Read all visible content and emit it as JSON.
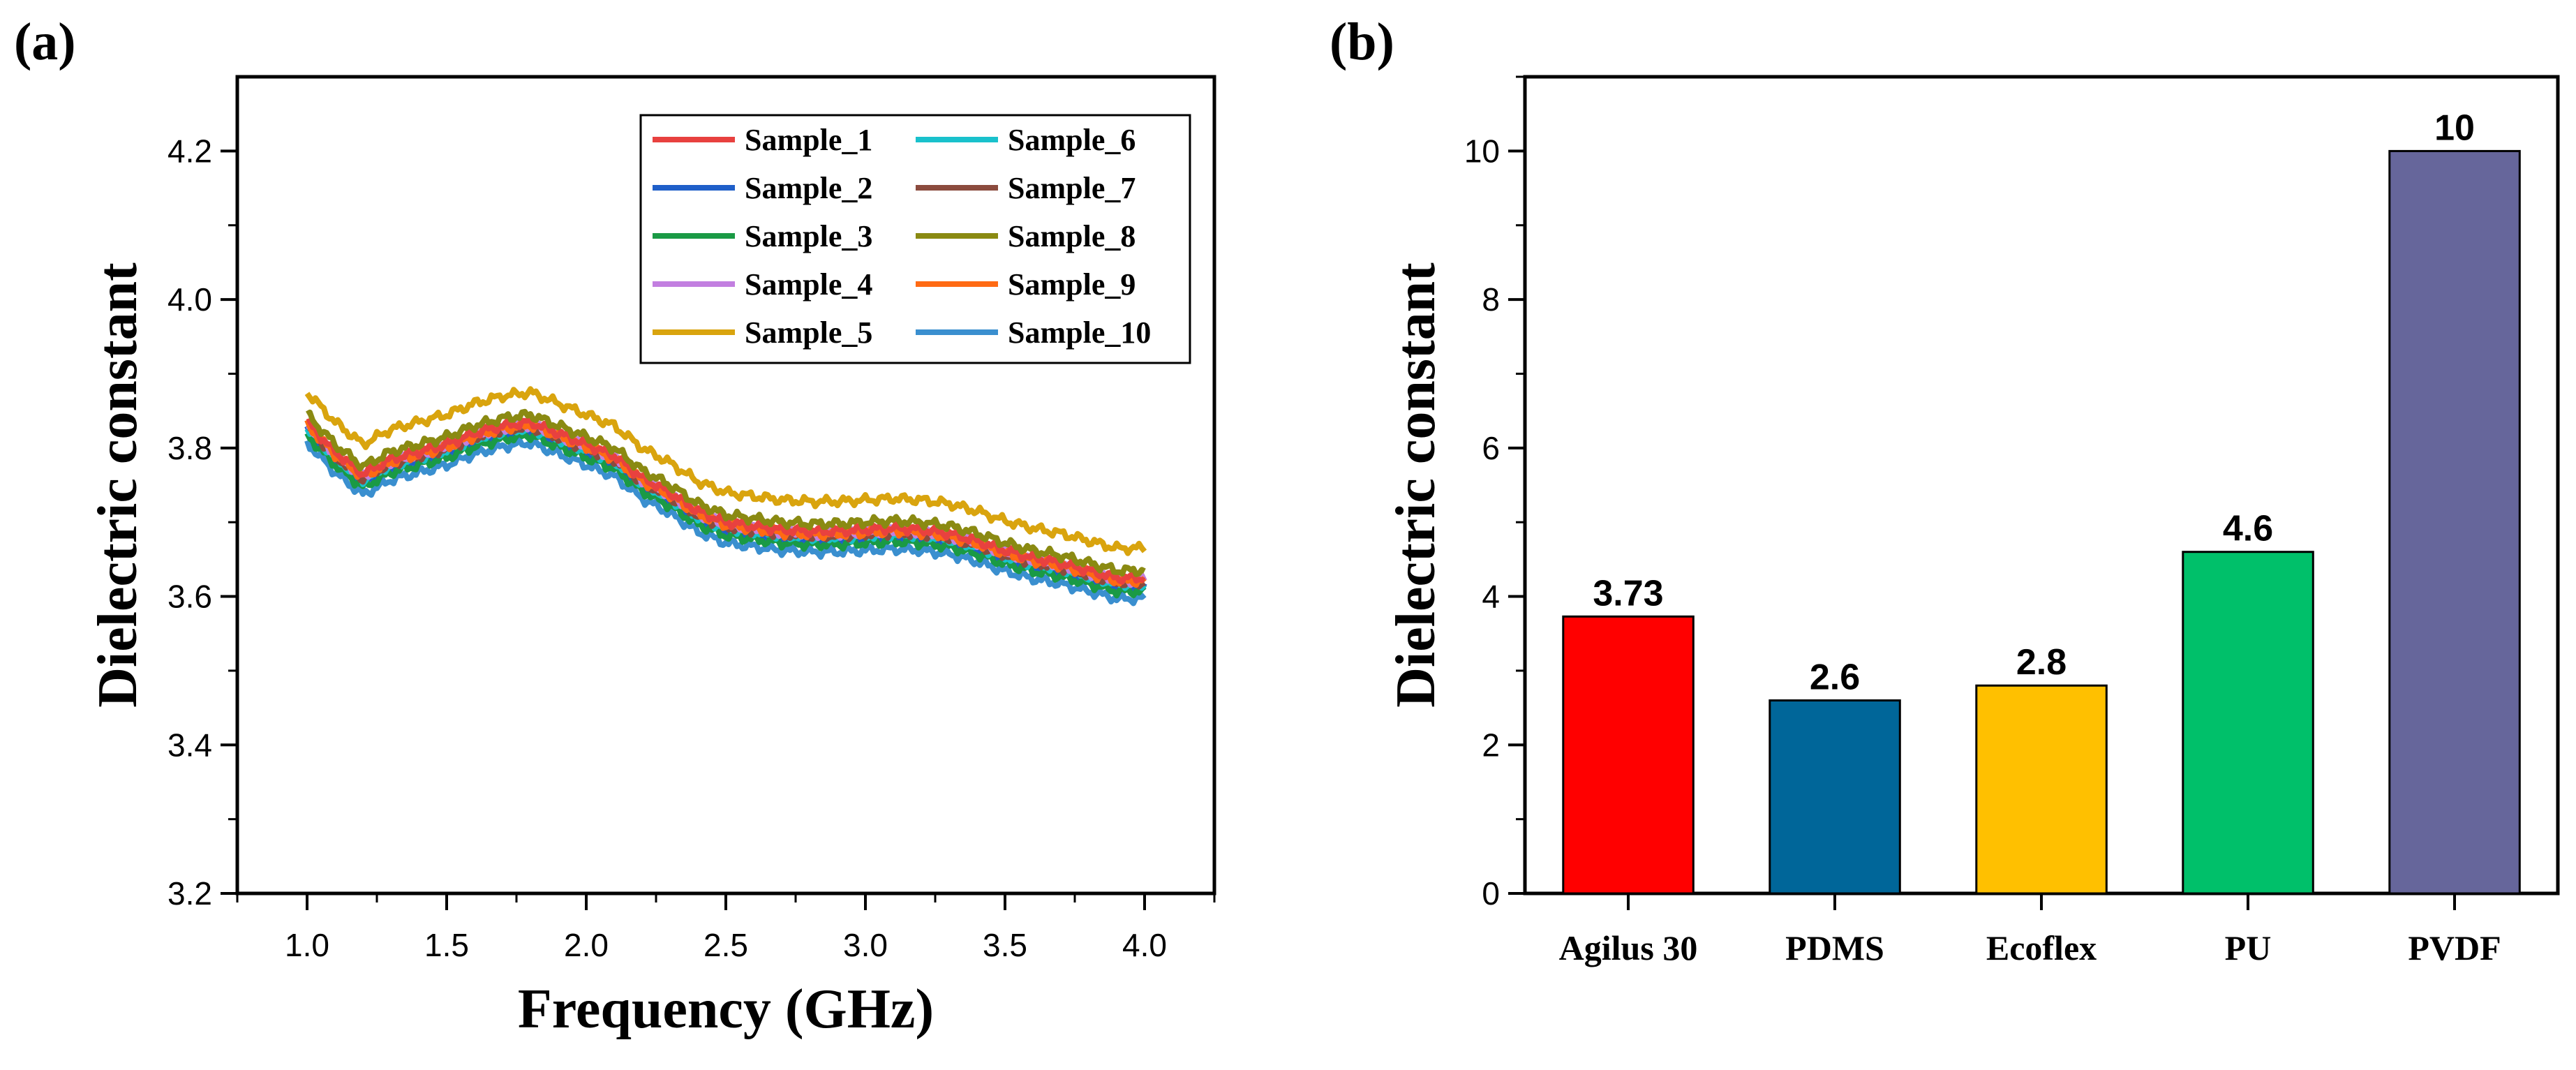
{
  "panel_labels": {
    "a": "(a)",
    "b": "(b)"
  },
  "chart_data": [
    {
      "type": "line",
      "panel": "(a)",
      "xlabel": "Frequency (GHz)",
      "ylabel": "Dielectric constant",
      "xlim": [
        0.75,
        4.25
      ],
      "ylim": [
        3.2,
        4.3
      ],
      "x_ticks": [
        1.0,
        1.5,
        2.0,
        2.5,
        3.0,
        3.5,
        4.0
      ],
      "y_ticks": [
        3.2,
        3.4,
        3.6,
        3.8,
        4.0,
        4.2
      ],
      "x_tick_labels": [
        "1.0",
        "1.5",
        "2.0",
        "2.5",
        "3.0",
        "3.5",
        "4.0"
      ],
      "y_tick_labels": [
        "3.2",
        "3.4",
        "3.6",
        "3.8",
        "4.0",
        "4.2"
      ],
      "x": [
        1.0,
        1.1,
        1.2,
        1.3,
        1.4,
        1.5,
        1.6,
        1.7,
        1.8,
        1.9,
        2.0,
        2.1,
        2.2,
        2.3,
        2.4,
        2.5,
        2.6,
        2.7,
        2.8,
        2.9,
        3.0,
        3.1,
        3.2,
        3.3,
        3.4,
        3.5,
        3.6,
        3.7,
        3.8,
        3.9,
        4.0
      ],
      "base_profile": [
        3.835,
        3.795,
        3.765,
        3.785,
        3.795,
        3.805,
        3.82,
        3.83,
        3.835,
        3.82,
        3.805,
        3.79,
        3.76,
        3.74,
        3.715,
        3.7,
        3.695,
        3.69,
        3.688,
        3.688,
        3.69,
        3.692,
        3.69,
        3.685,
        3.675,
        3.662,
        3.652,
        3.645,
        3.635,
        3.625,
        3.625
      ],
      "series": [
        {
          "name": "Sample_1",
          "color": "#e8413f",
          "offset": 0.0
        },
        {
          "name": "Sample_2",
          "color": "#1f5fc9",
          "offset": -0.012
        },
        {
          "name": "Sample_3",
          "color": "#1a9a45",
          "offset": -0.018
        },
        {
          "name": "Sample_4",
          "color": "#c27fe0",
          "offset": -0.003
        },
        {
          "name": "Sample_5",
          "color": "#d9a40e",
          "offset": 0.04
        },
        {
          "name": "Sample_6",
          "color": "#19c1cc",
          "offset": -0.008
        },
        {
          "name": "Sample_7",
          "color": "#8b4b3e",
          "offset": -0.006
        },
        {
          "name": "Sample_8",
          "color": "#8a8a12",
          "offset": 0.01
        },
        {
          "name": "Sample_9",
          "color": "#ff6a13",
          "offset": -0.004
        },
        {
          "name": "Sample_10",
          "color": "#3a8fcf",
          "offset": -0.028
        }
      ],
      "legend_position": "top-right"
    },
    {
      "type": "bar",
      "panel": "(b)",
      "ylabel": "Dielectric constant",
      "categories": [
        "Agilus 30",
        "PDMS",
        "Ecoflex",
        "PU",
        "PVDF"
      ],
      "values": [
        3.73,
        2.6,
        2.8,
        4.6,
        10
      ],
      "value_labels": [
        "3.73",
        "2.6",
        "2.8",
        "4.6",
        "10"
      ],
      "colors": [
        "#ff0000",
        "#006699",
        "#ffc000",
        "#00c06a",
        "#66669b"
      ],
      "ylim": [
        0,
        11
      ],
      "y_ticks": [
        0,
        2,
        4,
        6,
        8,
        10
      ],
      "y_tick_labels": [
        "0",
        "2",
        "4",
        "6",
        "8",
        "10"
      ]
    }
  ]
}
